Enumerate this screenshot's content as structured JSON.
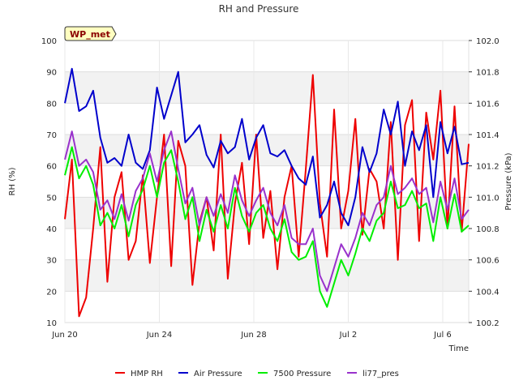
{
  "chart_data": {
    "type": "line",
    "title": "RH and Pressure",
    "xlabel": "Time",
    "ylabel": "RH (%)",
    "y2label": "Pressure (kPa)",
    "badge": "WP_met",
    "xlim": [
      0,
      17.1
    ],
    "ylim": [
      10,
      100
    ],
    "y2lim": [
      100.2,
      102.0
    ],
    "x_ticks": [
      {
        "value": 0,
        "label": "Jun 20"
      },
      {
        "value": 4,
        "label": "Jun 24"
      },
      {
        "value": 8,
        "label": "Jun 28"
      },
      {
        "value": 12,
        "label": "Jul 2"
      },
      {
        "value": 16,
        "label": "Jul 6"
      }
    ],
    "y_ticks": [
      10,
      20,
      30,
      40,
      50,
      60,
      70,
      80,
      90,
      100
    ],
    "y2_ticks": [
      "100.2",
      "100.4",
      "100.6",
      "100.8",
      "101.0",
      "101.2",
      "101.4",
      "101.6",
      "101.8",
      "102.0"
    ],
    "grid": true,
    "legend_position": "bottom",
    "series": [
      {
        "name": "HMP RH",
        "axis": "left",
        "color": "#ee0000",
        "x": [
          0.0,
          0.3,
          0.6,
          0.9,
          1.2,
          1.5,
          1.8,
          2.1,
          2.4,
          2.7,
          3.0,
          3.3,
          3.6,
          3.9,
          4.2,
          4.5,
          4.8,
          5.1,
          5.4,
          5.7,
          6.0,
          6.3,
          6.6,
          6.9,
          7.2,
          7.5,
          7.8,
          8.1,
          8.4,
          8.7,
          9.0,
          9.3,
          9.6,
          9.9,
          10.2,
          10.5,
          10.8,
          11.1,
          11.4,
          11.7,
          12.0,
          12.3,
          12.6,
          12.9,
          13.2,
          13.5,
          13.8,
          14.1,
          14.4,
          14.7,
          15.0,
          15.3,
          15.6,
          15.9,
          16.2,
          16.5,
          16.8,
          17.1
        ],
        "values": [
          43,
          62,
          12,
          18,
          40,
          66,
          23,
          50,
          58,
          30,
          36,
          57,
          29,
          50,
          70,
          28,
          68,
          60,
          22,
          42,
          50,
          33,
          70,
          24,
          48,
          61,
          35,
          70,
          37,
          52,
          27,
          50,
          60,
          31,
          59,
          89,
          48,
          31,
          78,
          40,
          52,
          75,
          38,
          59,
          55,
          40,
          74,
          30,
          73,
          81,
          36,
          77,
          62,
          84,
          40,
          79,
          39,
          67
        ]
      },
      {
        "name": "Air Pressure",
        "axis": "right",
        "color": "#0000cc",
        "x": [
          0.0,
          0.3,
          0.6,
          0.9,
          1.2,
          1.5,
          1.8,
          2.1,
          2.4,
          2.7,
          3.0,
          3.3,
          3.6,
          3.9,
          4.2,
          4.5,
          4.8,
          5.1,
          5.4,
          5.7,
          6.0,
          6.3,
          6.6,
          6.9,
          7.2,
          7.5,
          7.8,
          8.1,
          8.4,
          8.7,
          9.0,
          9.3,
          9.6,
          9.9,
          10.2,
          10.5,
          10.8,
          11.1,
          11.4,
          11.7,
          12.0,
          12.3,
          12.6,
          12.9,
          13.2,
          13.5,
          13.8,
          14.1,
          14.4,
          14.7,
          15.0,
          15.3,
          15.6,
          15.9,
          16.2,
          16.5,
          16.8,
          17.1
        ],
        "values": [
          101.6,
          101.82,
          101.55,
          101.58,
          101.68,
          101.38,
          101.22,
          101.25,
          101.2,
          101.4,
          101.22,
          101.18,
          101.3,
          101.7,
          101.5,
          101.65,
          101.8,
          101.35,
          101.4,
          101.46,
          101.27,
          101.19,
          101.36,
          101.28,
          101.32,
          101.5,
          101.24,
          101.38,
          101.46,
          101.28,
          101.26,
          101.3,
          101.2,
          101.12,
          101.08,
          101.26,
          100.87,
          100.95,
          101.1,
          100.9,
          100.82,
          101.0,
          101.32,
          101.16,
          101.28,
          101.56,
          101.4,
          101.61,
          101.2,
          101.42,
          101.3,
          101.46,
          101.0,
          101.48,
          101.28,
          101.45,
          101.21,
          101.22
        ]
      },
      {
        "name": "7500 Pressure",
        "axis": "right",
        "color": "#00ee00",
        "x": [
          0.0,
          0.3,
          0.6,
          0.9,
          1.2,
          1.5,
          1.8,
          2.1,
          2.4,
          2.7,
          3.0,
          3.3,
          3.6,
          3.9,
          4.2,
          4.5,
          4.8,
          5.1,
          5.4,
          5.7,
          6.0,
          6.3,
          6.6,
          6.9,
          7.2,
          7.5,
          7.8,
          8.1,
          8.4,
          8.7,
          9.0,
          9.3,
          9.6,
          9.9,
          10.2,
          10.5,
          10.8,
          11.1,
          11.4,
          11.7,
          12.0,
          12.3,
          12.6,
          12.9,
          13.2,
          13.5,
          13.8,
          14.1,
          14.4,
          14.7,
          15.0,
          15.3,
          15.6,
          15.9,
          16.2,
          16.5,
          16.8,
          17.1
        ],
        "values": [
          101.14,
          101.32,
          101.12,
          101.2,
          101.08,
          100.82,
          100.9,
          100.8,
          100.95,
          100.75,
          100.95,
          101.05,
          101.2,
          101.0,
          101.22,
          101.3,
          101.1,
          100.86,
          101.0,
          100.72,
          100.92,
          100.78,
          100.95,
          100.8,
          101.06,
          100.88,
          100.78,
          100.9,
          100.95,
          100.8,
          100.72,
          100.86,
          100.65,
          100.6,
          100.62,
          100.72,
          100.4,
          100.3,
          100.45,
          100.6,
          100.5,
          100.64,
          100.8,
          100.72,
          100.85,
          100.9,
          101.1,
          100.93,
          100.95,
          101.04,
          100.93,
          100.96,
          100.72,
          101.0,
          100.8,
          101.02,
          100.78,
          100.82
        ]
      },
      {
        "name": "li77_pres",
        "axis": "right",
        "color": "#9932cc",
        "x": [
          0.0,
          0.3,
          0.6,
          0.9,
          1.2,
          1.5,
          1.8,
          2.1,
          2.4,
          2.7,
          3.0,
          3.3,
          3.6,
          3.9,
          4.2,
          4.5,
          4.8,
          5.1,
          5.4,
          5.7,
          6.0,
          6.3,
          6.6,
          6.9,
          7.2,
          7.5,
          7.8,
          8.1,
          8.4,
          8.7,
          9.0,
          9.3,
          9.6,
          9.9,
          10.2,
          10.5,
          10.8,
          11.1,
          11.4,
          11.7,
          12.0,
          12.3,
          12.6,
          12.9,
          13.2,
          13.5,
          13.8,
          14.1,
          14.4,
          14.7,
          15.0,
          15.3,
          15.6,
          15.9,
          16.2,
          16.5,
          16.8,
          17.1
        ],
        "values": [
          101.24,
          101.42,
          101.2,
          101.24,
          101.16,
          100.92,
          100.98,
          100.86,
          101.02,
          100.85,
          101.04,
          101.12,
          101.28,
          101.1,
          101.3,
          101.42,
          101.18,
          100.96,
          101.06,
          100.82,
          101.0,
          100.88,
          101.02,
          100.9,
          101.14,
          100.98,
          100.88,
          100.98,
          101.06,
          100.9,
          100.82,
          100.95,
          100.74,
          100.7,
          100.7,
          100.8,
          100.5,
          100.4,
          100.55,
          100.7,
          100.62,
          100.74,
          100.9,
          100.82,
          100.95,
          101.0,
          101.2,
          101.02,
          101.06,
          101.12,
          101.02,
          101.06,
          100.84,
          101.1,
          100.92,
          101.12,
          100.86,
          100.92
        ]
      }
    ]
  }
}
